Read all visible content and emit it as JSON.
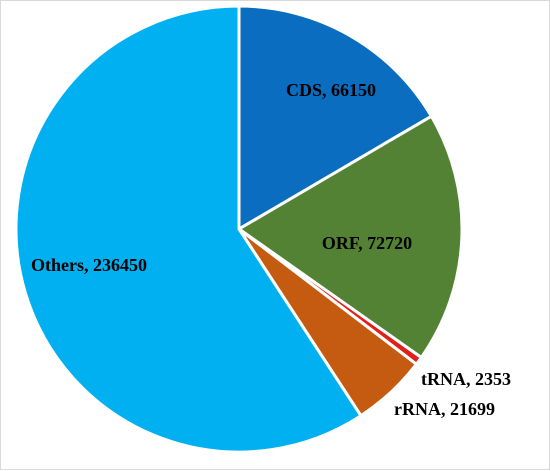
{
  "chart_data": {
    "type": "pie",
    "slices": [
      {
        "label": "CDS, 66150",
        "name": "CDS",
        "value": 66150,
        "color": "#0A6DC0"
      },
      {
        "label": "ORF, 72720",
        "name": "ORF",
        "value": 72720,
        "color": "#548235"
      },
      {
        "label": "tRNA, 2353",
        "name": "tRNA",
        "value": 2353,
        "color": "#E0201B"
      },
      {
        "label": "rRNA, 21699",
        "name": "rRNA",
        "value": 21699,
        "color": "#C55A11"
      },
      {
        "label": "Others, 236450",
        "name": "Others",
        "value": 236450,
        "color": "#00B0F0"
      }
    ],
    "start_angle": "12 o'clock",
    "direction": "clockwise",
    "legend": "none",
    "title": ""
  }
}
